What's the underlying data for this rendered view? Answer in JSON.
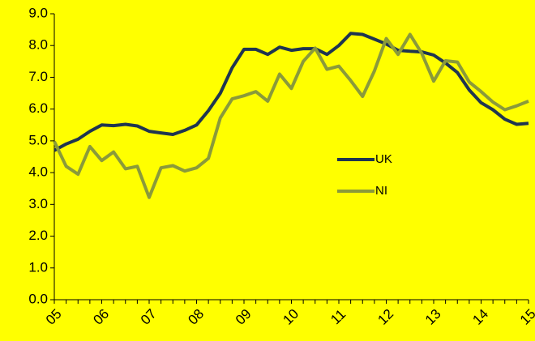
{
  "chart_data": {
    "type": "line",
    "categories": [
      "05",
      null,
      null,
      null,
      "06",
      null,
      null,
      null,
      "07",
      null,
      null,
      null,
      "08",
      null,
      null,
      null,
      "09",
      null,
      null,
      null,
      "10",
      null,
      null,
      null,
      "11",
      null,
      null,
      null,
      "12",
      null,
      null,
      null,
      "13",
      null,
      null,
      null,
      "14",
      null,
      null,
      null,
      "15"
    ],
    "series": [
      {
        "name": "UK",
        "color": "#1f3550",
        "values": [
          4.7,
          4.9,
          5.05,
          5.3,
          5.5,
          5.48,
          5.52,
          5.47,
          5.3,
          5.25,
          5.2,
          5.33,
          5.5,
          5.95,
          6.5,
          7.3,
          7.88,
          7.88,
          7.72,
          7.95,
          7.85,
          7.9,
          7.9,
          7.72,
          8.0,
          8.38,
          8.35,
          8.2,
          8.05,
          7.85,
          7.82,
          7.8,
          7.7,
          7.45,
          7.15,
          6.6,
          6.2,
          5.98,
          5.68,
          5.52,
          5.55
        ]
      },
      {
        "name": "NI",
        "color": "#8a9a3a",
        "values": [
          4.98,
          4.2,
          3.95,
          4.82,
          4.38,
          4.65,
          4.12,
          4.2,
          3.22,
          4.15,
          4.22,
          4.05,
          4.15,
          4.45,
          5.72,
          6.32,
          6.42,
          6.55,
          6.25,
          7.1,
          6.65,
          7.5,
          7.92,
          7.25,
          7.35,
          6.9,
          6.4,
          7.2,
          8.22,
          7.72,
          8.35,
          7.75,
          6.88,
          7.52,
          7.48,
          6.85,
          6.55,
          6.22,
          5.98,
          6.1,
          6.25
        ]
      }
    ],
    "ylim": [
      0,
      9
    ],
    "yticks": [
      {
        "value": 0,
        "label": "0.0"
      },
      {
        "value": 1,
        "label": "1.0"
      },
      {
        "value": 2,
        "label": "2.0"
      },
      {
        "value": 3,
        "label": "3.0"
      },
      {
        "value": 4,
        "label": "4.0"
      },
      {
        "value": 5,
        "label": "5.0"
      },
      {
        "value": 6,
        "label": "6.0"
      },
      {
        "value": 7,
        "label": "7.0"
      },
      {
        "value": 8,
        "label": "8.0"
      },
      {
        "value": 9,
        "label": "9.0"
      }
    ],
    "grid": false,
    "legend": "right",
    "background": "#ffff00"
  }
}
